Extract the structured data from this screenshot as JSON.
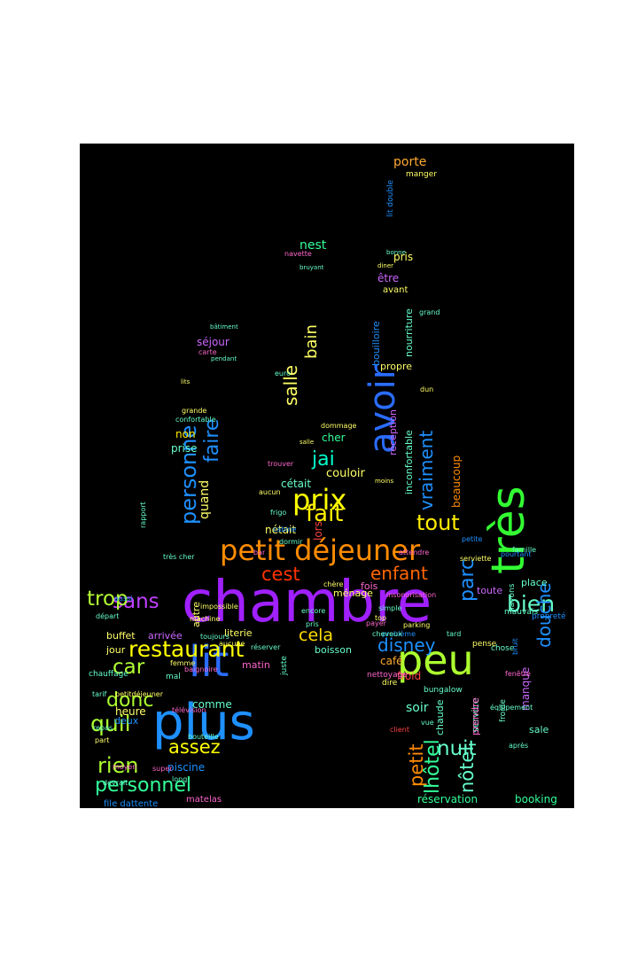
{
  "words": [
    {
      "text": "chambre",
      "color": "#a020ff"
    },
    {
      "text": "très",
      "color": "#33ff33"
    },
    {
      "text": "plus",
      "color": "#1e90ff"
    },
    {
      "text": "lit",
      "color": "#2a6cff"
    },
    {
      "text": "peu",
      "color": "#adff2f"
    },
    {
      "text": "petit déjeuner",
      "color": "#ff8c00"
    },
    {
      "text": "avoir",
      "color": "#2a6cff"
    },
    {
      "text": "prix",
      "color": "#ffff00"
    },
    {
      "text": "fait",
      "color": "#ffee00"
    },
    {
      "text": "tout",
      "color": "#ffee00"
    },
    {
      "text": "restaurant",
      "color": "#ffff00"
    },
    {
      "text": "personnel",
      "color": "#33ff99"
    },
    {
      "text": "rien",
      "color": "#adff2f"
    },
    {
      "text": "quil",
      "color": "#adff2f"
    },
    {
      "text": "assez",
      "color": "#ffff00"
    },
    {
      "text": "donc",
      "color": "#adff2f"
    },
    {
      "text": "car",
      "color": "#b3ff33"
    },
    {
      "text": "sans",
      "color": "#c040ff"
    },
    {
      "text": "trop",
      "color": "#b3ff33"
    },
    {
      "text": "bien",
      "color": "#66ffcc"
    },
    {
      "text": "nuit",
      "color": "#66ffcc"
    },
    {
      "text": "nôtel",
      "color": "#66ffcc"
    },
    {
      "text": "enfant",
      "color": "#ff6600"
    },
    {
      "text": "cest",
      "color": "#ff3300"
    },
    {
      "text": "disney",
      "color": "#1e90ff"
    },
    {
      "text": "cela",
      "color": "#ffdd00"
    },
    {
      "text": "jai",
      "color": "#00ffcc"
    },
    {
      "text": "salle",
      "color": "#ffff66"
    },
    {
      "text": "bain",
      "color": "#ffff66"
    },
    {
      "text": "faire",
      "color": "#1e90ff"
    },
    {
      "text": "personne",
      "color": "#1e90ff"
    },
    {
      "text": "vraiment",
      "color": "#1e90ff"
    },
    {
      "text": "parc",
      "color": "#1e90ff"
    },
    {
      "text": "petit",
      "color": "#ff8c00"
    },
    {
      "text": "lhôtel",
      "color": "#33ff99"
    },
    {
      "text": "douche",
      "color": "#1e90ff"
    },
    {
      "text": "réservation",
      "color": "#33ff99"
    },
    {
      "text": "booking",
      "color": "#33ff99"
    },
    {
      "text": "porte",
      "color": "#ffaa33"
    },
    {
      "text": "nest",
      "color": "#33ff99"
    },
    {
      "text": "pris",
      "color": "#ffff66"
    },
    {
      "text": "être",
      "color": "#cc66ff"
    },
    {
      "text": "séjour",
      "color": "#cc66ff"
    },
    {
      "text": "non",
      "color": "#ffee00"
    },
    {
      "text": "prise",
      "color": "#66ffcc"
    },
    {
      "text": "quand",
      "color": "#ffff66"
    },
    {
      "text": "cher",
      "color": "#33ff99"
    },
    {
      "text": "couloir",
      "color": "#ffff66"
    },
    {
      "text": "cétait",
      "color": "#66ffcc"
    },
    {
      "text": "nétait",
      "color": "#ffff66"
    },
    {
      "text": "lors",
      "color": "#ff4444"
    },
    {
      "text": "ménage",
      "color": "#ffff66"
    },
    {
      "text": "boisson",
      "color": "#66ffcc"
    },
    {
      "text": "café",
      "color": "#ffaa33"
    },
    {
      "text": "froid",
      "color": "#ff4444"
    },
    {
      "text": "soir",
      "color": "#66ffcc"
    },
    {
      "text": "chaude",
      "color": "#66ffcc"
    },
    {
      "text": "heure",
      "color": "#ffff66"
    },
    {
      "text": "comme",
      "color": "#66ffcc"
    },
    {
      "text": "jour",
      "color": "#ffff66"
    },
    {
      "text": "buffet",
      "color": "#ffff66"
    },
    {
      "text": "arrivée",
      "color": "#cc66ff"
    },
    {
      "text": "literie",
      "color": "#ffff66"
    },
    {
      "text": "matin",
      "color": "#ff66cc"
    },
    {
      "text": "piscine",
      "color": "#1e90ff"
    },
    {
      "text": "deux",
      "color": "#1e90ff"
    },
    {
      "text": "autre",
      "color": "#ffff66"
    },
    {
      "text": "chauffage",
      "color": "#66ffcc"
    },
    {
      "text": "avant",
      "color": "#ffff66"
    },
    {
      "text": "propre",
      "color": "#ffff66"
    },
    {
      "text": "réception",
      "color": "#cc66ff"
    },
    {
      "text": "bouilloire",
      "color": "#1e90ff"
    },
    {
      "text": "nourriture",
      "color": "#66ffcc"
    },
    {
      "text": "inconfortable",
      "color": "#66ffcc"
    },
    {
      "text": "beaucoup",
      "color": "#ff8c00"
    },
    {
      "text": "place",
      "color": "#66ffcc"
    },
    {
      "text": "toute",
      "color": "#cc66ff"
    },
    {
      "text": "fois",
      "color": "#ff66cc"
    },
    {
      "text": "sale",
      "color": "#66ffcc"
    },
    {
      "text": "manque",
      "color": "#cc66ff"
    },
    {
      "text": "service",
      "color": "#66ffcc"
    },
    {
      "text": "prendre",
      "color": "#ff66cc"
    },
    {
      "text": "file dattente",
      "color": "#1e90ff"
    },
    {
      "text": "matelas",
      "color": "#ff66cc"
    },
    {
      "text": "manger",
      "color": "#ffff66"
    },
    {
      "text": "lit double",
      "color": "#1e90ff"
    },
    {
      "text": "navette",
      "color": "#ff66cc"
    },
    {
      "text": "carte",
      "color": "#ff66cc"
    },
    {
      "text": "euro",
      "color": "#66ffcc"
    },
    {
      "text": "dommage",
      "color": "#ffff66"
    },
    {
      "text": "trouver",
      "color": "#ff66cc"
    },
    {
      "text": "aucun",
      "color": "#ffff66"
    },
    {
      "text": "frigo",
      "color": "#66ffcc"
    },
    {
      "text": "mal",
      "color": "#66ffcc"
    },
    {
      "text": "juste",
      "color": "#66ffcc"
    },
    {
      "text": "dire",
      "color": "#ffff66"
    },
    {
      "text": "bungalow",
      "color": "#66ffcc"
    },
    {
      "text": "nettoyage",
      "color": "#ff66cc"
    },
    {
      "text": "simple",
      "color": "#66ffcc"
    },
    {
      "text": "payer",
      "color": "#ff66cc"
    },
    {
      "text": "insonorisation",
      "color": "#ff66cc"
    },
    {
      "text": "serviette",
      "color": "#ffff66"
    },
    {
      "text": "famille",
      "color": "#66ffcc"
    },
    {
      "text": "mauvais",
      "color": "#66ffcc"
    },
    {
      "text": "chose",
      "color": "#66ffcc"
    },
    {
      "text": "pense",
      "color": "#ffff66"
    },
    {
      "text": "dun",
      "color": "#ffff66"
    },
    {
      "text": "grand",
      "color": "#66ffcc"
    },
    {
      "text": "bar",
      "color": "#ff66cc"
    },
    {
      "text": "très cher",
      "color": "#66ffcc"
    },
    {
      "text": "confortable",
      "color": "#66ffcc"
    },
    {
      "text": "grande",
      "color": "#ffff66"
    },
    {
      "text": "aussi",
      "color": "#1e90ff"
    },
    {
      "text": "long",
      "color": "#66ffcc"
    },
    {
      "text": "super",
      "color": "#ff66cc"
    },
    {
      "text": "tarif",
      "color": "#66ffcc"
    },
    {
      "text": "repas",
      "color": "#66ffcc"
    },
    {
      "text": "devrait",
      "color": "#66ffcc"
    },
    {
      "text": "part",
      "color": "#ffff66"
    },
    {
      "text": "moyen",
      "color": "#ff66cc"
    },
    {
      "text": "bouteille",
      "color": "#66ffcc"
    },
    {
      "text": "télévision",
      "color": "#ff66cc"
    },
    {
      "text": "réserver",
      "color": "#66ffcc"
    },
    {
      "text": "toujours",
      "color": "#66ffcc"
    },
    {
      "text": "machine",
      "color": "#ffff66"
    },
    {
      "text": "impossible",
      "color": "#ffff66"
    },
    {
      "text": "cabine",
      "color": "#1e90ff"
    },
    {
      "text": "rapport",
      "color": "#66ffcc"
    },
    {
      "text": "pendant",
      "color": "#66ffcc"
    },
    {
      "text": "lits",
      "color": "#ffff66"
    },
    {
      "text": "parking",
      "color": "#ffff66"
    },
    {
      "text": "client",
      "color": "#ff4444"
    },
    {
      "text": "après",
      "color": "#66ffcc"
    },
    {
      "text": "froide",
      "color": "#66ffcc"
    },
    {
      "text": "équipement",
      "color": "#66ffcc"
    },
    {
      "text": "propreté",
      "color": "#1e90ff"
    },
    {
      "text": "navons",
      "color": "#66ffcc"
    },
    {
      "text": "bruit",
      "color": "#1e90ff"
    },
    {
      "text": "petite",
      "color": "#1e90ff"
    },
    {
      "text": "pourtant",
      "color": "#1e90ff"
    },
    {
      "text": "bâtiment",
      "color": "#66ffcc"
    },
    {
      "text": "salle",
      "color": "#ffff66"
    },
    {
      "text": "top",
      "color": "#ffff66"
    },
    {
      "text": "vue",
      "color": "#66ffcc"
    },
    {
      "text": "problème",
      "color": "#1e90ff"
    },
    {
      "text": "bonne",
      "color": "#66ffcc"
    },
    {
      "text": "diner",
      "color": "#ffff66"
    },
    {
      "text": "pris",
      "color": "#66ffcc"
    },
    {
      "text": "encore",
      "color": "#66ffcc"
    },
    {
      "text": "chère",
      "color": "#ffff66"
    },
    {
      "text": "moins",
      "color": "#ffff66"
    },
    {
      "text": "aucune",
      "color": "#ffff66"
    },
    {
      "text": "femme",
      "color": "#ffff66"
    },
    {
      "text": "petitdéjeuner",
      "color": "#ffff66"
    },
    {
      "text": "fenêtre",
      "color": "#ff66cc"
    },
    {
      "text": "bruyant",
      "color": "#66ffcc"
    },
    {
      "text": "baignoire",
      "color": "#ff66cc"
    },
    {
      "text": "départ",
      "color": "#66ffcc"
    },
    {
      "text": "attendre",
      "color": "#ff66cc"
    },
    {
      "text": "dormir",
      "color": "#66ffcc"
    },
    {
      "text": "cheveux",
      "color": "#66ffcc"
    },
    {
      "text": "tard",
      "color": "#66ffcc"
    },
    {
      "text": "coin",
      "color": "#66ffcc"
    },
    {
      "text": "nombre",
      "color": "#66ffcc"
    },
    {
      "text": "petits",
      "color": "#66ffcc"
    }
  ]
}
